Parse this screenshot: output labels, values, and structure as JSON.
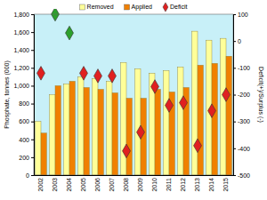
{
  "chart_data": {
    "type": "bar",
    "y_label": "Phosphate, tonnes (000)",
    "y2_label": "Deficit(+)/Surplus (-)",
    "categories": [
      "2002",
      "2003",
      "2004",
      "2005",
      "2006",
      "2007",
      "2008",
      "2009",
      "2010",
      "2011",
      "2012",
      "2013",
      "2014",
      "2015"
    ],
    "series": [
      {
        "name": "Removed",
        "type": "bar",
        "color": "#ffff99",
        "values": [
          600,
          900,
          1020,
          1100,
          1080,
          1050,
          1260,
          1190,
          1140,
          1170,
          1210,
          1610,
          1510,
          1530
        ]
      },
      {
        "name": "Applied",
        "type": "bar",
        "color": "#f08000",
        "values": [
          470,
          1000,
          1050,
          980,
          960,
          920,
          860,
          860,
          960,
          930,
          980,
          1230,
          1250,
          1330
        ]
      },
      {
        "name": "Deficit",
        "type": "scatter",
        "marker": "diamond",
        "axis": "y2",
        "color": "#e02020",
        "colors": [
          "#e02020",
          "#2ca02c",
          "#2ca02c",
          "#e02020",
          "#e02020",
          "#e02020",
          "#e02020",
          "#e02020",
          "#e02020",
          "#e02020",
          "#e02020",
          "#e02020",
          "#e02020",
          "#e02020"
        ],
        "values": [
          -120,
          100,
          30,
          -120,
          -130,
          -130,
          -410,
          -340,
          -170,
          -240,
          -230,
          -390,
          -260,
          -200
        ]
      }
    ],
    "ylim": [
      0,
      1800
    ],
    "yticks": [
      0,
      200,
      400,
      600,
      800,
      {
        "value": 1000,
        "label": "1,000"
      },
      {
        "value": 1200,
        "label": "1,200"
      },
      {
        "value": 1400,
        "label": "1,400"
      },
      {
        "value": 1600,
        "label": "1,600"
      },
      {
        "value": 1800,
        "label": "1,800"
      }
    ],
    "y2lim": [
      -500,
      100
    ],
    "y2ticks": [
      -500,
      -400,
      -300,
      -200,
      -100,
      0,
      100
    ],
    "grid": false,
    "legend": "top"
  }
}
